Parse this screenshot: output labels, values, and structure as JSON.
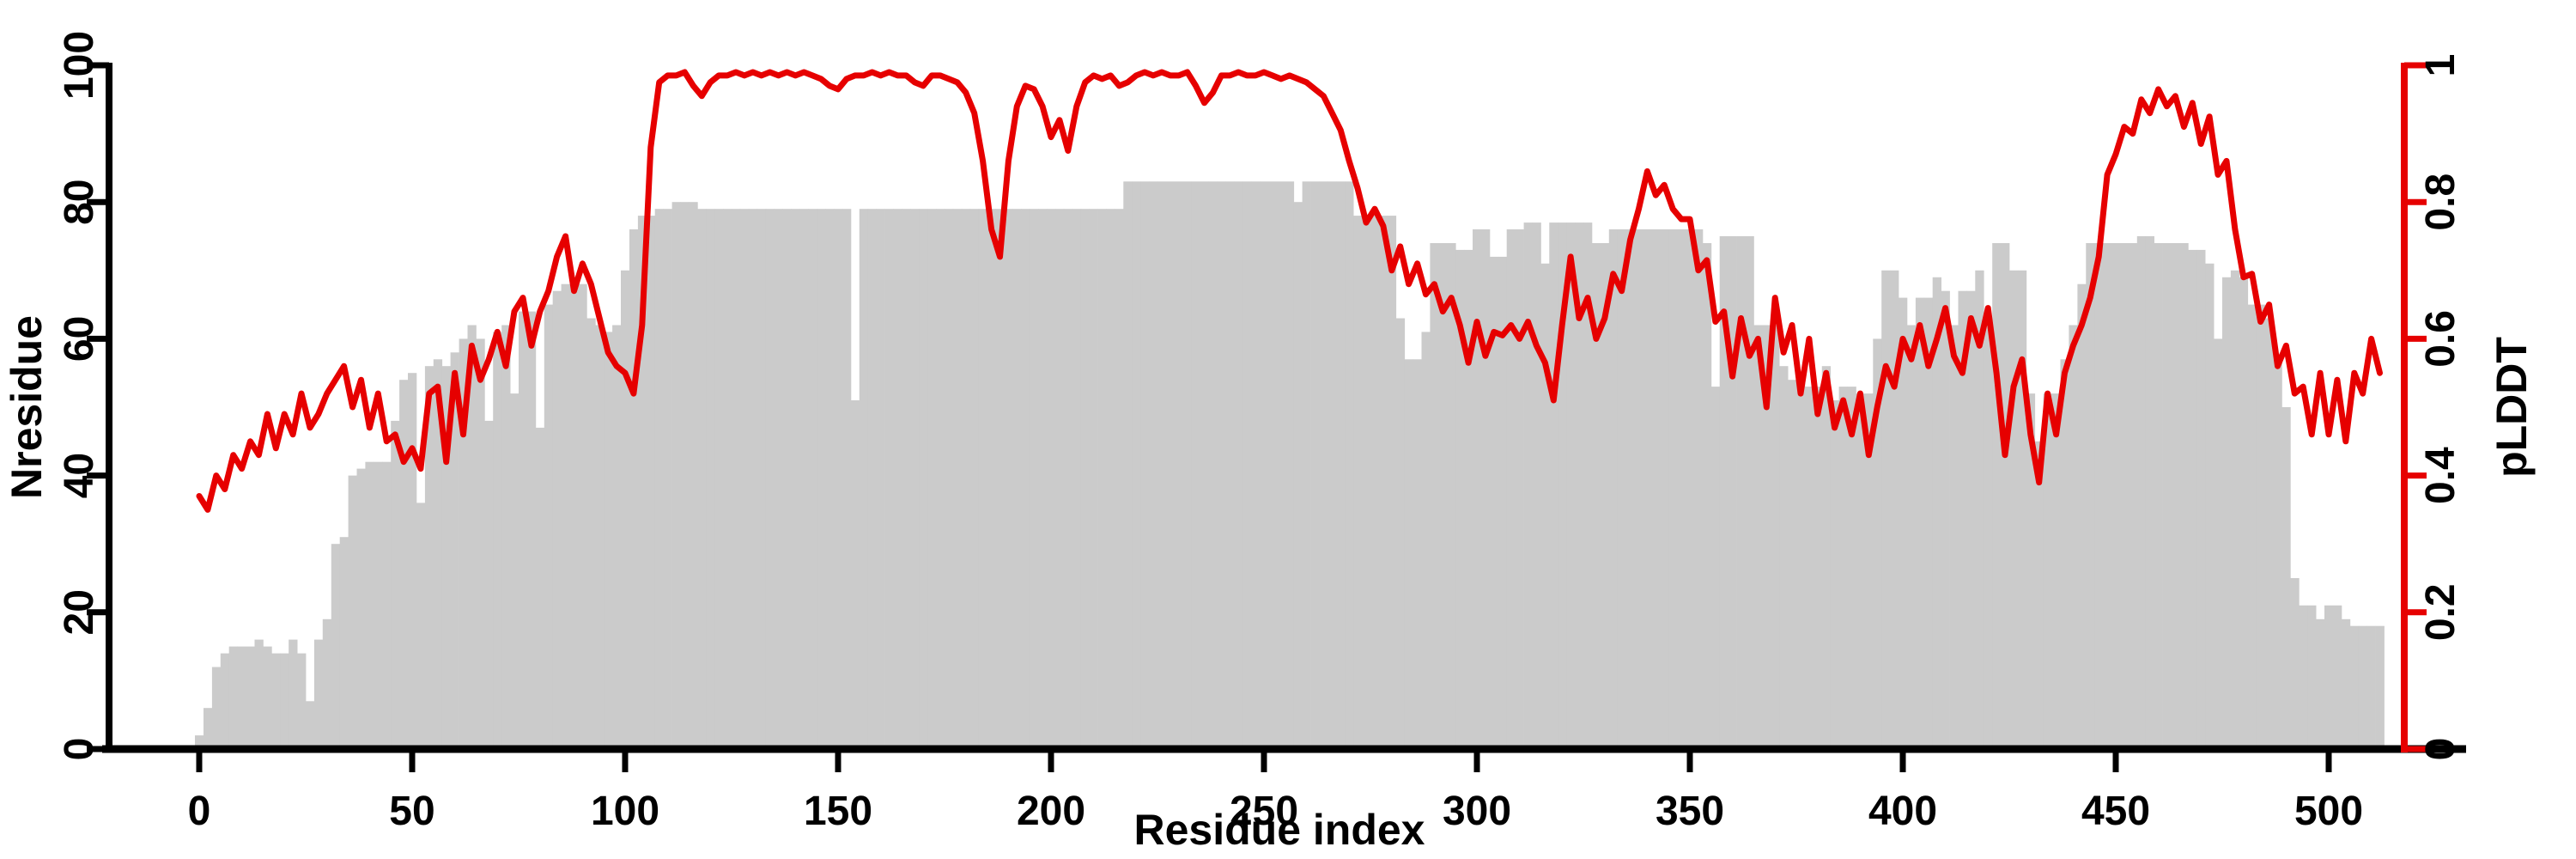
{
  "figure": {
    "background_color": "#ffffff",
    "description": "Dual-axis residue profile plot: gray bars = Nresidue (left axis), red line = pLDDT (right axis)"
  },
  "chart_data": {
    "type": "bar",
    "overlay_type": "line",
    "title": "",
    "xlabel": "Residue index",
    "ylabel_left": "Nresidue",
    "ylabel_right": "pLDDT",
    "x_ticks": [
      0,
      50,
      100,
      150,
      200,
      250,
      300,
      350,
      400,
      450,
      500
    ],
    "y_left_ticks": [
      0,
      20,
      40,
      60,
      80,
      100
    ],
    "y_right_ticks": [
      0,
      0.2,
      0.4,
      0.6,
      0.8,
      1
    ],
    "y_left_range": [
      0,
      100
    ],
    "y_right_range": [
      0,
      1
    ],
    "x_range": [
      0,
      512
    ],
    "x_start": 0,
    "x_step": 2,
    "grid": false,
    "legend": false,
    "bar_color": "#cbcbcb",
    "line_color": "#e60000",
    "axis_color": "#000000",
    "series": [
      {
        "name": "Nresidue",
        "kind": "bar",
        "axis": "left",
        "values": [
          2,
          6,
          12,
          14,
          15,
          15,
          15,
          16,
          15,
          14,
          14,
          16,
          14,
          7,
          16,
          19,
          30,
          31,
          40,
          41,
          42,
          42,
          42,
          48,
          54,
          55,
          36,
          56,
          57,
          56,
          58,
          60,
          62,
          60,
          48,
          61,
          62,
          52,
          64,
          64,
          47,
          65,
          67,
          68,
          68,
          68,
          63,
          62,
          61,
          62,
          70,
          76,
          78,
          78,
          79,
          79,
          80,
          80,
          80,
          79,
          79,
          79,
          79,
          79,
          79,
          79,
          79,
          79,
          79,
          79,
          79,
          79,
          79,
          79,
          79,
          79,
          79,
          51,
          79,
          79,
          79,
          79,
          79,
          79,
          79,
          79,
          79,
          79,
          79,
          79,
          79,
          79,
          79,
          79,
          79,
          79,
          79,
          79,
          79,
          79,
          79,
          79,
          79,
          79,
          79,
          79,
          79,
          79,
          79,
          83,
          83,
          83,
          83,
          83,
          83,
          83,
          83,
          83,
          83,
          83,
          83,
          83,
          83,
          83,
          83,
          83,
          83,
          83,
          83,
          80,
          83,
          83,
          83,
          83,
          83,
          83,
          78,
          78,
          78,
          78,
          78,
          63,
          57,
          57,
          61,
          74,
          74,
          74,
          73,
          73,
          76,
          76,
          72,
          72,
          76,
          76,
          77,
          77,
          71,
          77,
          77,
          77,
          77,
          77,
          74,
          74,
          76,
          76,
          76,
          76,
          76,
          76,
          76,
          76,
          76,
          76,
          76,
          74,
          53,
          75,
          75,
          75,
          75,
          62,
          62,
          62,
          56,
          54,
          54,
          53,
          53,
          56,
          51,
          53,
          53,
          52,
          52,
          60,
          70,
          70,
          66,
          62,
          66,
          66,
          69,
          67,
          62,
          67,
          67,
          70,
          62,
          74,
          74,
          70,
          70,
          52,
          45,
          52,
          52,
          57,
          62,
          68,
          74,
          74,
          74,
          74,
          74,
          74,
          75,
          75,
          74,
          74,
          74,
          74,
          73,
          73,
          71,
          60,
          69,
          70,
          69,
          65,
          65,
          63,
          57,
          50,
          25,
          21,
          21,
          19,
          21,
          21,
          19,
          18,
          18,
          18,
          18
        ]
      },
      {
        "name": "pLDDT",
        "kind": "line",
        "axis": "right",
        "values": [
          0.37,
          0.35,
          0.4,
          0.38,
          0.43,
          0.41,
          0.45,
          0.43,
          0.49,
          0.44,
          0.49,
          0.46,
          0.52,
          0.47,
          0.49,
          0.52,
          0.54,
          0.56,
          0.5,
          0.54,
          0.47,
          0.52,
          0.45,
          0.46,
          0.42,
          0.44,
          0.41,
          0.52,
          0.53,
          0.42,
          0.55,
          0.46,
          0.59,
          0.54,
          0.57,
          0.61,
          0.56,
          0.64,
          0.66,
          0.59,
          0.64,
          0.67,
          0.72,
          0.75,
          0.67,
          0.71,
          0.68,
          0.63,
          0.58,
          0.56,
          0.55,
          0.52,
          0.62,
          0.88,
          0.975,
          0.985,
          0.985,
          0.99,
          0.97,
          0.955,
          0.975,
          0.985,
          0.985,
          0.99,
          0.985,
          0.99,
          0.985,
          0.99,
          0.985,
          0.99,
          0.985,
          0.99,
          0.985,
          0.98,
          0.97,
          0.965,
          0.98,
          0.985,
          0.985,
          0.99,
          0.985,
          0.99,
          0.985,
          0.985,
          0.975,
          0.97,
          0.985,
          0.985,
          0.98,
          0.975,
          0.96,
          0.93,
          0.86,
          0.76,
          0.72,
          0.86,
          0.94,
          0.97,
          0.965,
          0.94,
          0.895,
          0.92,
          0.875,
          0.94,
          0.975,
          0.985,
          0.98,
          0.985,
          0.97,
          0.975,
          0.985,
          0.99,
          0.985,
          0.99,
          0.985,
          0.985,
          0.99,
          0.97,
          0.945,
          0.96,
          0.985,
          0.985,
          0.99,
          0.985,
          0.985,
          0.99,
          0.985,
          0.98,
          0.985,
          0.98,
          0.975,
          0.965,
          0.955,
          0.93,
          0.905,
          0.86,
          0.82,
          0.77,
          0.79,
          0.765,
          0.7,
          0.735,
          0.68,
          0.71,
          0.665,
          0.68,
          0.64,
          0.66,
          0.62,
          0.565,
          0.625,
          0.575,
          0.61,
          0.605,
          0.62,
          0.6,
          0.625,
          0.59,
          0.565,
          0.51,
          0.62,
          0.72,
          0.63,
          0.66,
          0.6,
          0.63,
          0.695,
          0.67,
          0.745,
          0.79,
          0.845,
          0.81,
          0.825,
          0.79,
          0.775,
          0.775,
          0.7,
          0.715,
          0.625,
          0.64,
          0.545,
          0.63,
          0.575,
          0.6,
          0.5,
          0.66,
          0.58,
          0.62,
          0.52,
          0.6,
          0.49,
          0.55,
          0.47,
          0.51,
          0.46,
          0.52,
          0.43,
          0.5,
          0.56,
          0.53,
          0.6,
          0.57,
          0.62,
          0.56,
          0.6,
          0.645,
          0.575,
          0.55,
          0.63,
          0.59,
          0.645,
          0.55,
          0.43,
          0.53,
          0.57,
          0.46,
          0.39,
          0.52,
          0.46,
          0.55,
          0.59,
          0.62,
          0.66,
          0.72,
          0.84,
          0.87,
          0.91,
          0.9,
          0.95,
          0.93,
          0.965,
          0.94,
          0.955,
          0.91,
          0.945,
          0.885,
          0.925,
          0.84,
          0.86,
          0.76,
          0.69,
          0.695,
          0.625,
          0.65,
          0.56,
          0.59,
          0.52,
          0.53,
          0.46,
          0.55,
          0.46,
          0.54,
          0.45,
          0.55,
          0.52,
          0.6,
          0.55
        ]
      }
    ]
  }
}
